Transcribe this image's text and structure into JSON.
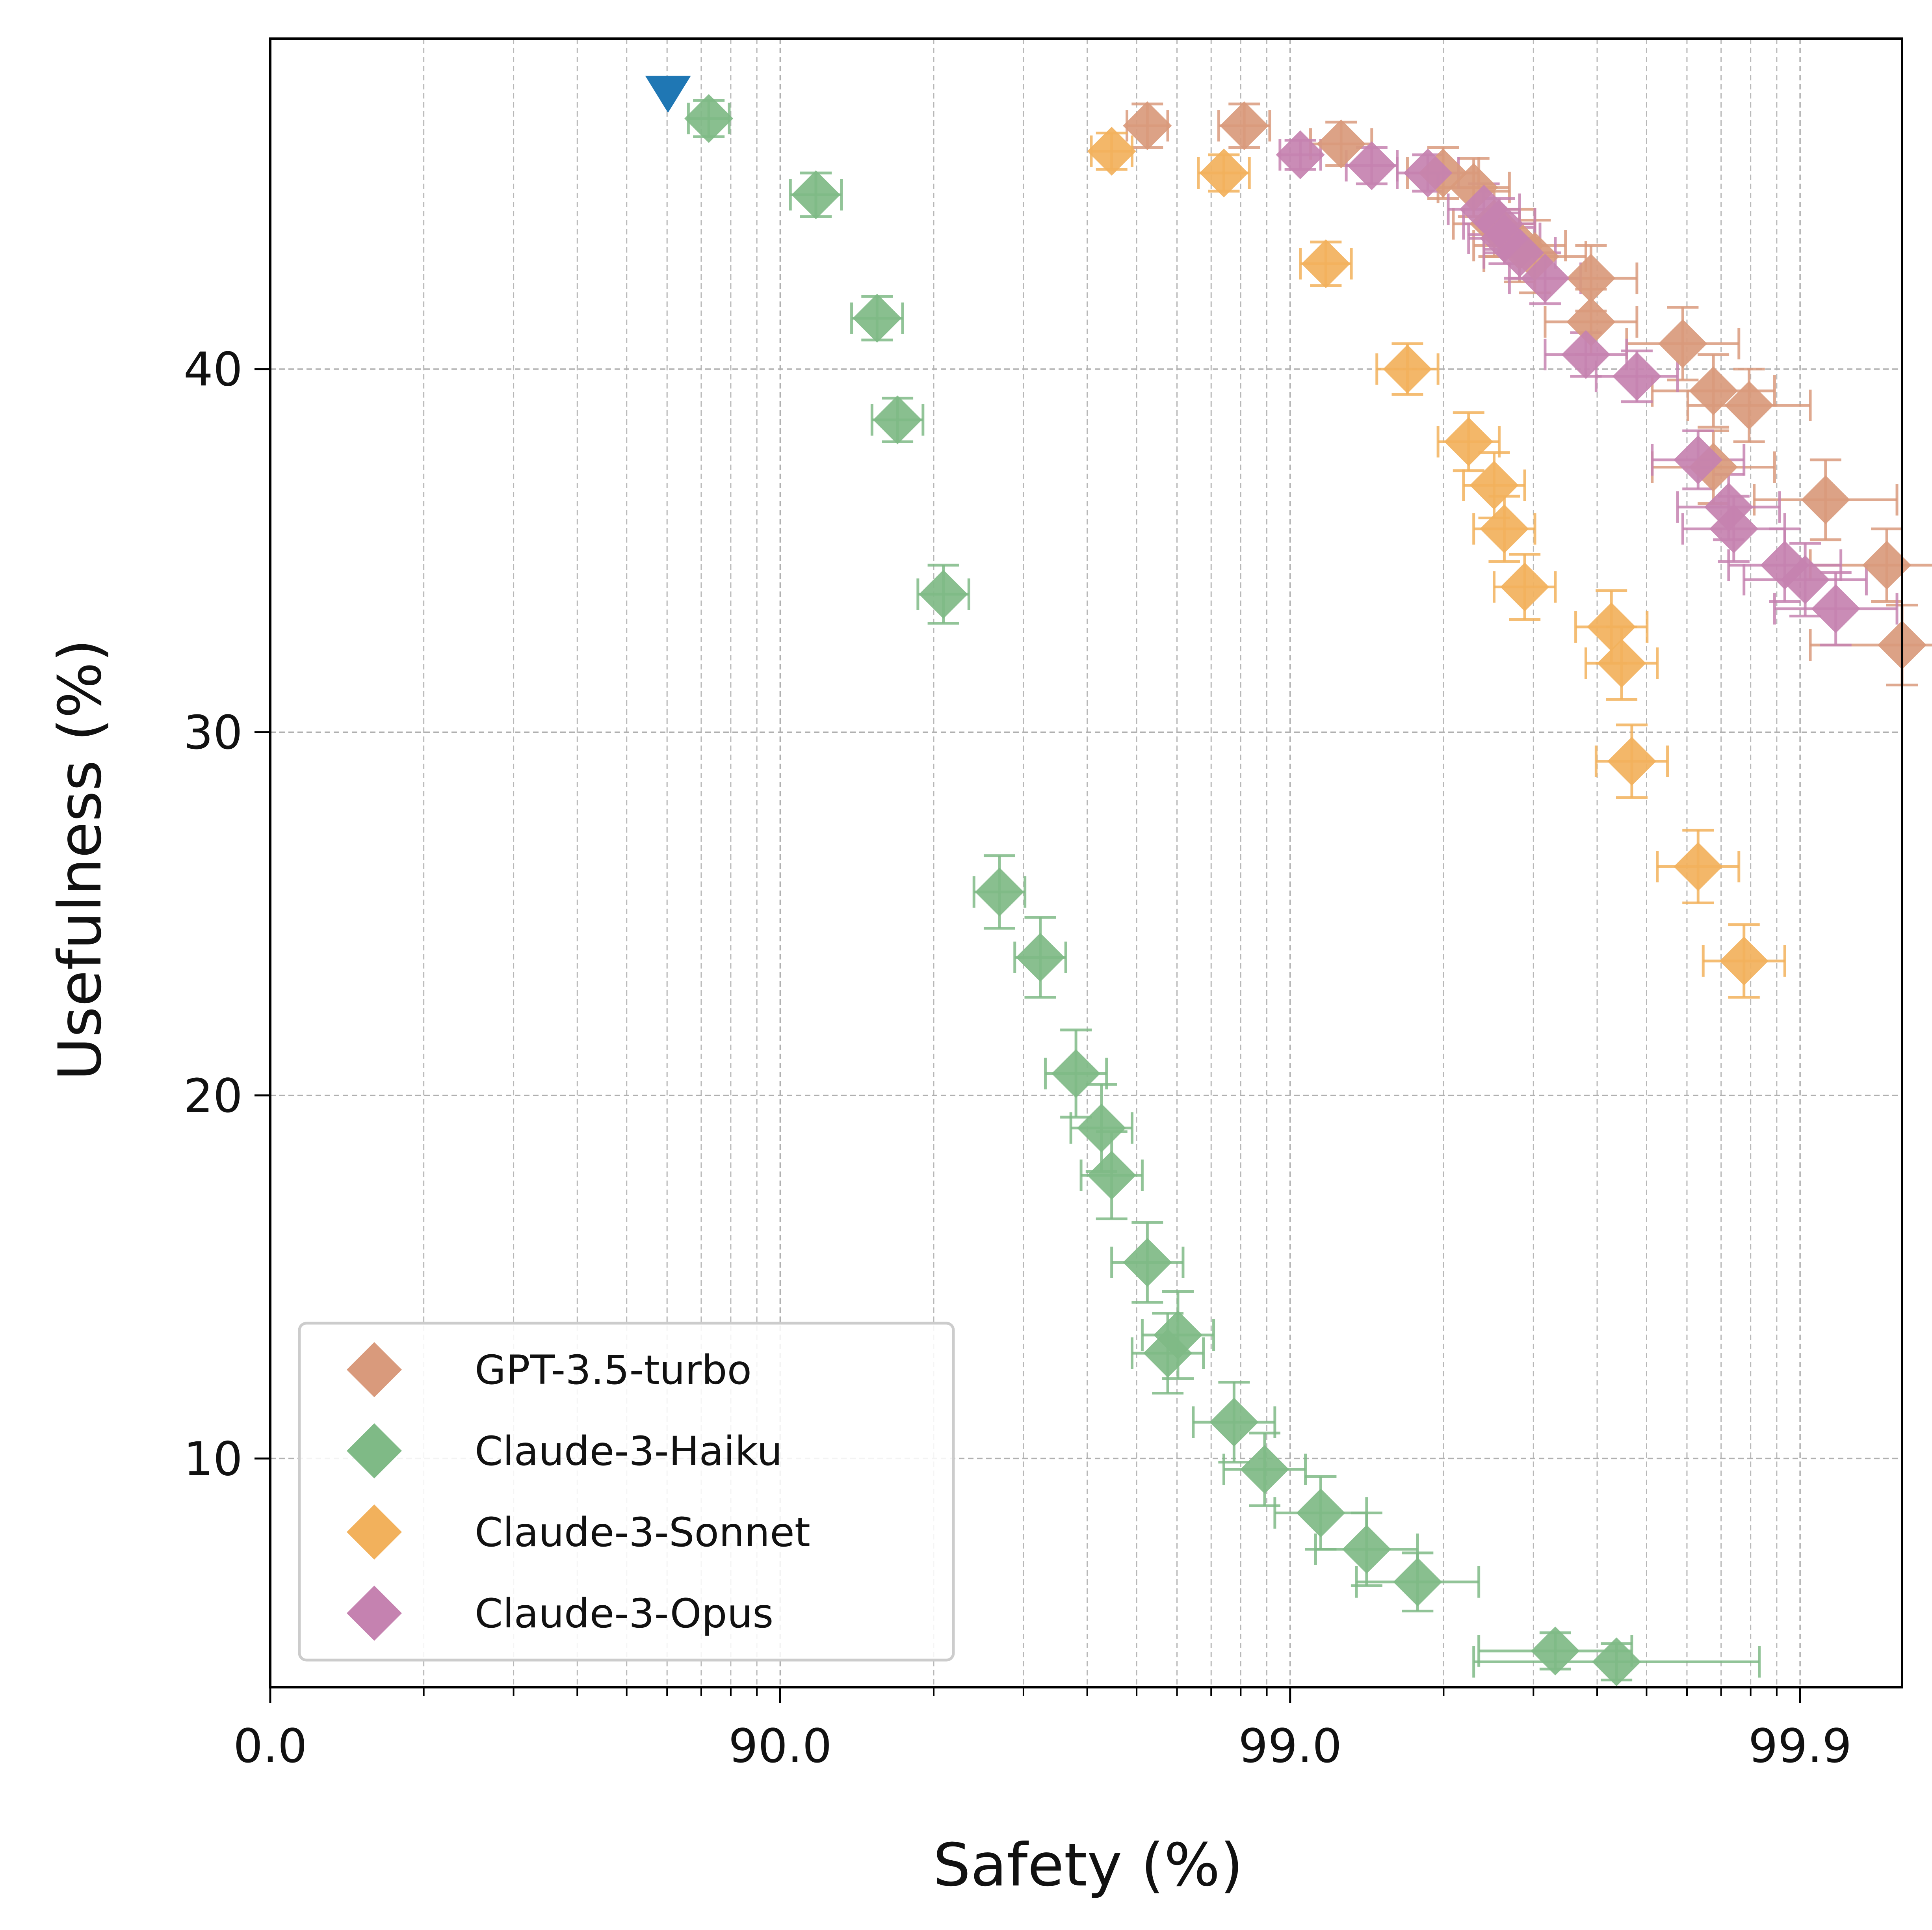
{
  "chart_data": {
    "type": "scatter",
    "title": "",
    "xlabel": "Safety (%)",
    "ylabel": "Usefulness (%)",
    "xscale": "logit-like: -log10(1 - safety/100)",
    "xlim_transformed": [
      0,
      3.2
    ],
    "ylim": [
      3.7,
      49.1
    ],
    "xticks": [
      {
        "label": "0.0",
        "value": 0
      },
      {
        "label": "90.0",
        "value": 1
      },
      {
        "label": "99.0",
        "value": 2
      },
      {
        "label": "99.9",
        "value": 3
      }
    ],
    "yticks": [
      {
        "label": "10",
        "value": 10
      },
      {
        "label": "20",
        "value": 20
      },
      {
        "label": "30",
        "value": 30
      },
      {
        "label": "40",
        "value": 40
      }
    ],
    "grid": true,
    "legend_position": "lower-left",
    "baseline_point": {
      "x": 0.78,
      "y": 47.6,
      "color": "#1f77b4",
      "marker": "triangle-down"
    },
    "series": [
      {
        "name": "GPT-3.5-turbo",
        "color": "#d99a7c",
        "points": [
          [
            1.72,
            46.7,
            0.04,
            0.6
          ],
          [
            1.91,
            46.7,
            0.05,
            0.6
          ],
          [
            2.1,
            46.2,
            0.06,
            0.6
          ],
          [
            2.3,
            45.4,
            0.07,
            0.7
          ],
          [
            2.36,
            45.0,
            0.07,
            0.8
          ],
          [
            2.4,
            44.0,
            0.08,
            0.9
          ],
          [
            2.45,
            43.4,
            0.09,
            1.0
          ],
          [
            2.48,
            43.1,
            0.1,
            1.0
          ],
          [
            2.59,
            42.5,
            0.09,
            0.9
          ],
          [
            2.59,
            41.3,
            0.09,
            0.9
          ],
          [
            2.77,
            40.7,
            0.11,
            1.0
          ],
          [
            2.83,
            39.4,
            0.12,
            1.0
          ],
          [
            2.9,
            39.0,
            0.12,
            1.0
          ],
          [
            2.83,
            37.3,
            0.12,
            1.0
          ],
          [
            3.05,
            36.4,
            0.14,
            1.1
          ],
          [
            3.17,
            34.6,
            0.15,
            1.0
          ],
          [
            3.2,
            32.4,
            0.18,
            1.1
          ]
        ]
      },
      {
        "name": "Claude-3-Haiku",
        "color": "#7fba86",
        "points": [
          [
            0.86,
            46.9,
            0.04,
            0.5
          ],
          [
            1.07,
            44.8,
            0.05,
            0.6
          ],
          [
            1.19,
            41.4,
            0.05,
            0.6
          ],
          [
            1.23,
            38.6,
            0.05,
            0.6
          ],
          [
            1.32,
            33.8,
            0.05,
            0.8
          ],
          [
            1.43,
            25.6,
            0.05,
            1.0
          ],
          [
            1.51,
            23.8,
            0.05,
            1.1
          ],
          [
            1.58,
            20.6,
            0.06,
            1.2
          ],
          [
            1.63,
            19.1,
            0.06,
            1.2
          ],
          [
            1.65,
            17.8,
            0.06,
            1.2
          ],
          [
            1.72,
            15.4,
            0.07,
            1.1
          ],
          [
            1.78,
            13.4,
            0.07,
            1.2
          ],
          [
            1.76,
            12.9,
            0.07,
            1.1
          ],
          [
            1.89,
            11.0,
            0.08,
            1.1
          ],
          [
            1.95,
            9.7,
            0.08,
            1.0
          ],
          [
            2.06,
            8.5,
            0.09,
            1.0
          ],
          [
            2.15,
            7.5,
            0.1,
            1.0
          ],
          [
            2.25,
            6.6,
            0.12,
            0.8
          ],
          [
            2.52,
            4.7,
            0.15,
            0.5
          ],
          [
            2.64,
            4.4,
            0.28,
            0.5
          ]
        ]
      },
      {
        "name": "Claude-3-Sonnet",
        "color": "#f2b15c",
        "points": [
          [
            1.65,
            46.0,
            0.04,
            0.5
          ],
          [
            1.87,
            45.4,
            0.05,
            0.5
          ],
          [
            2.07,
            42.9,
            0.05,
            0.6
          ],
          [
            2.23,
            40.0,
            0.06,
            0.7
          ],
          [
            2.35,
            38.0,
            0.06,
            0.8
          ],
          [
            2.4,
            36.8,
            0.06,
            0.9
          ],
          [
            2.42,
            35.6,
            0.06,
            0.9
          ],
          [
            2.46,
            34.0,
            0.06,
            0.9
          ],
          [
            2.63,
            32.9,
            0.07,
            1.0
          ],
          [
            2.65,
            31.9,
            0.07,
            1.0
          ],
          [
            2.67,
            29.2,
            0.07,
            1.0
          ],
          [
            2.8,
            26.3,
            0.08,
            1.0
          ],
          [
            2.89,
            23.7,
            0.08,
            1.0
          ]
        ]
      },
      {
        "name": "Claude-3-Opus",
        "color": "#c582b0",
        "points": [
          [
            2.02,
            45.9,
            0.04,
            0.4
          ],
          [
            2.16,
            45.6,
            0.05,
            0.5
          ],
          [
            2.27,
            45.4,
            0.06,
            0.5
          ],
          [
            2.38,
            44.4,
            0.07,
            0.7
          ],
          [
            2.41,
            44.0,
            0.07,
            0.7
          ],
          [
            2.42,
            43.6,
            0.07,
            0.7
          ],
          [
            2.45,
            43.2,
            0.07,
            0.7
          ],
          [
            2.5,
            42.5,
            0.07,
            0.7
          ],
          [
            2.58,
            40.4,
            0.08,
            0.6
          ],
          [
            2.68,
            39.8,
            0.08,
            0.7
          ],
          [
            2.8,
            37.5,
            0.09,
            0.8
          ],
          [
            2.86,
            36.2,
            0.1,
            0.9
          ],
          [
            2.87,
            35.6,
            0.1,
            0.9
          ],
          [
            2.97,
            34.6,
            0.11,
            1.0
          ],
          [
            3.01,
            34.2,
            0.12,
            1.0
          ],
          [
            3.07,
            33.4,
            0.12,
            1.0
          ]
        ]
      }
    ]
  }
}
